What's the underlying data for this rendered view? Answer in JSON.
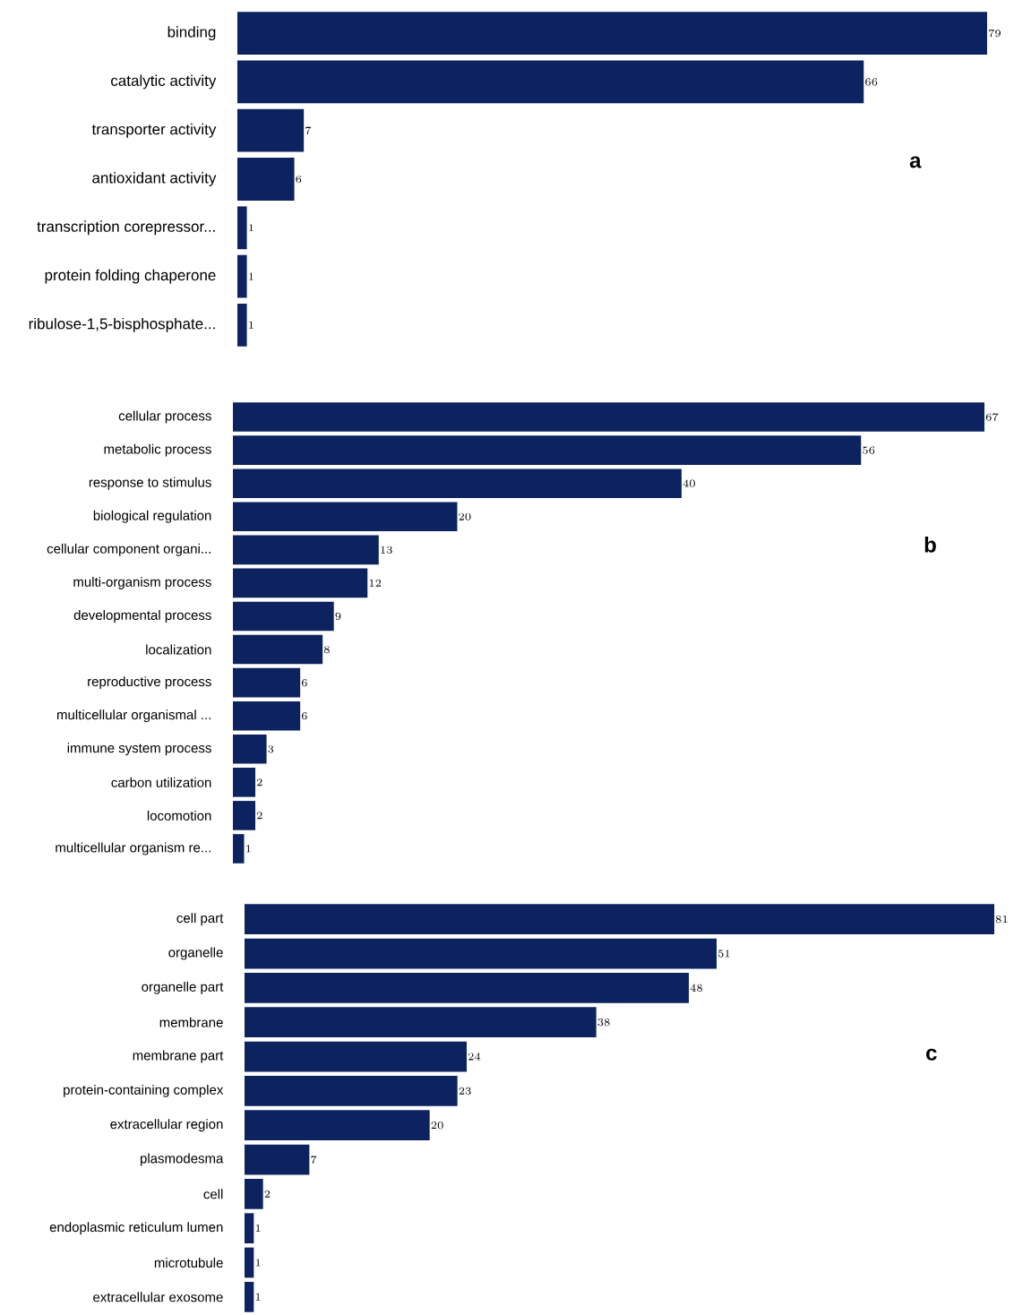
{
  "chart_data": [
    {
      "type": "bar",
      "orientation": "horizontal",
      "data_labels": true,
      "color": "#0c2360",
      "categories": [
        "binding",
        "catalytic activity",
        "transporter activity",
        "antioxidant activity",
        "transcription corepressor...",
        "protein folding chaperone",
        "ribulose-1,5-bisphosphate..."
      ],
      "values": [
        79,
        66,
        7,
        6,
        1,
        1,
        1
      ],
      "annotations": [
        "a"
      ]
    },
    {
      "type": "bar",
      "orientation": "horizontal",
      "data_labels": true,
      "color": "#0c2360",
      "categories": [
        "cellular process",
        "metabolic process",
        "response to stimulus",
        "biological regulation",
        "cellular component organi...",
        "multi-organism process",
        "developmental process",
        "localization",
        "reproductive process",
        "multicellular organismal ...",
        "immune system process",
        "carbon utilization",
        "locomotion",
        "multicellular organism re..."
      ],
      "values": [
        67,
        56,
        40,
        20,
        13,
        12,
        9,
        8,
        6,
        6,
        3,
        2,
        2,
        1
      ],
      "annotations": [
        "b"
      ]
    },
    {
      "type": "bar",
      "orientation": "horizontal",
      "data_labels": true,
      "color": "#0c2360",
      "categories": [
        "cell part",
        "organelle",
        "organelle part",
        "membrane",
        "membrane part",
        "protein-containing complex",
        "extracellular region",
        "plasmodesma",
        "cell",
        "endoplasmic reticulum lumen",
        "microtubule",
        "extracellular exosome"
      ],
      "values": [
        81,
        51,
        48,
        38,
        24,
        23,
        20,
        7,
        2,
        1,
        1,
        1
      ],
      "annotations": [
        "c"
      ]
    }
  ]
}
